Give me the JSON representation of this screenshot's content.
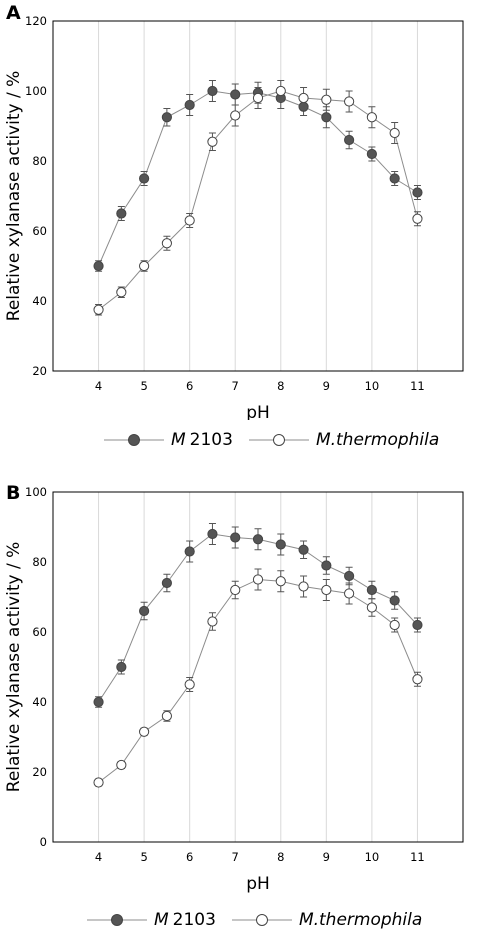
{
  "chart_data": [
    {
      "panel_label": "A",
      "type": "line",
      "xlabel": "pH",
      "ylabel": "Relative xylanase activity / %",
      "xlim": [
        3,
        12
      ],
      "ylim": [
        20,
        120
      ],
      "x_ticks": [
        4,
        5,
        6,
        7,
        8,
        9,
        10,
        11
      ],
      "y_ticks": [
        20,
        40,
        60,
        80,
        100,
        120
      ],
      "grid": "vertical",
      "legend_position": "bottom",
      "x": [
        4,
        4.5,
        5,
        5.5,
        6,
        6.5,
        7,
        7.5,
        8,
        8.5,
        9,
        9.5,
        10,
        10.5,
        11
      ],
      "series": [
        {
          "name": "M",
          "name_suffix": "2103",
          "marker": "filled-circle",
          "color": "#555555",
          "values": [
            50,
            65,
            75,
            92.5,
            96,
            100,
            99,
            99.5,
            98,
            95.5,
            92.5,
            86,
            82,
            75,
            71
          ],
          "errors": [
            1.5,
            2,
            2,
            2.5,
            3,
            3,
            3,
            3,
            3,
            2.5,
            3,
            2.5,
            2,
            2,
            2
          ]
        },
        {
          "name": "M.thermophila",
          "name_suffix": "",
          "marker": "open-circle",
          "color": "#ffffff",
          "values": [
            37.5,
            42.5,
            50,
            56.5,
            63,
            85.5,
            93,
            98,
            100,
            98,
            97.5,
            97,
            92.5,
            88,
            63.5
          ],
          "errors": [
            1.5,
            1.5,
            1.5,
            2,
            2,
            2.5,
            3,
            3,
            3,
            3,
            3,
            3,
            3,
            3,
            2
          ]
        }
      ]
    },
    {
      "panel_label": "B",
      "type": "line",
      "xlabel": "pH",
      "ylabel": "Relative xylanase activity / %",
      "xlim": [
        3,
        12
      ],
      "ylim": [
        0,
        100
      ],
      "x_ticks": [
        4,
        5,
        6,
        7,
        8,
        9,
        10,
        11
      ],
      "y_ticks": [
        0,
        20,
        40,
        60,
        80,
        100
      ],
      "grid": "vertical",
      "legend_position": "bottom",
      "x": [
        4,
        4.5,
        5,
        5.5,
        6,
        6.5,
        7,
        7.5,
        8,
        8.5,
        9,
        9.5,
        10,
        10.5,
        11
      ],
      "series": [
        {
          "name": "M",
          "name_suffix": "2103",
          "marker": "filled-circle",
          "color": "#555555",
          "values": [
            40,
            50,
            66,
            74,
            83,
            88,
            87,
            86.5,
            85,
            83.5,
            79,
            76,
            72,
            69,
            62
          ],
          "errors": [
            1.5,
            2,
            2.5,
            2.5,
            3,
            3,
            3,
            3,
            3,
            2.5,
            2.5,
            2.5,
            2.5,
            2.5,
            2
          ]
        },
        {
          "name": "M.thermophila",
          "name_suffix": "",
          "marker": "open-circle",
          "color": "#ffffff",
          "values": [
            17,
            22,
            31.5,
            36,
            45,
            63,
            72,
            75,
            74.5,
            73,
            72,
            71,
            67,
            62,
            46.5
          ],
          "errors": [
            1,
            1,
            1,
            1.5,
            2,
            2.5,
            2.5,
            3,
            3,
            3,
            3,
            3,
            2.5,
            2,
            2
          ]
        }
      ]
    }
  ]
}
